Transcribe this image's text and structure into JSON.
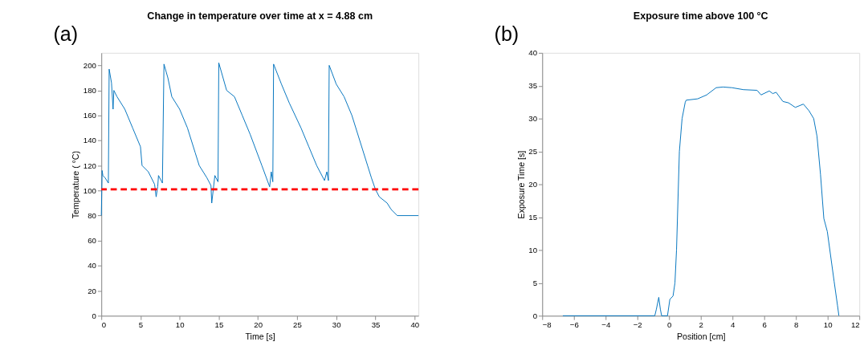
{
  "chart_data": [
    {
      "type": "line",
      "title": "Change in temperature over time at x = 4.88 cm",
      "xlabel": "Time [s]",
      "ylabel": "Temperature ( °C)",
      "annotations": [
        "(a)"
      ],
      "grid": false,
      "line_style": "solid",
      "marker": "none",
      "xlim": [
        0,
        40.5
      ],
      "xticks": [
        0,
        5,
        10,
        15,
        20,
        25,
        30,
        35,
        40
      ],
      "ylim": [
        0,
        210
      ],
      "yticks": [
        0,
        20,
        40,
        60,
        80,
        100,
        120,
        140,
        160,
        180,
        200
      ],
      "ref_lines": [
        {
          "axis": "y",
          "value": 101,
          "color": "#ff0000",
          "line_style": "dashed"
        }
      ],
      "series": [
        {
          "color": "#0072bd",
          "x": [
            0,
            0.1,
            0.2,
            0.5,
            0.9,
            1.0,
            1.3,
            1.5,
            1.6,
            2.0,
            3.0,
            4.0,
            5.0,
            5.2,
            6.0,
            6.8,
            7.0,
            7.2,
            7.3,
            7.8,
            8.0,
            8.5,
            9.0,
            10.0,
            11.0,
            12.0,
            12.5,
            13.5,
            14.0,
            14.1,
            14.5,
            14.9,
            15.0,
            16.0,
            17.0,
            18.0,
            19.0,
            20.5,
            21.5,
            21.7,
            21.9,
            22.0,
            23.0,
            24.0,
            25.5,
            26.5,
            27.5,
            28.5,
            28.8,
            29.0,
            29.1,
            30.0,
            31.0,
            32.0,
            33.0,
            34.0,
            34.5,
            35.0,
            35.5,
            36.5,
            37.0,
            37.8,
            40.5
          ],
          "values": [
            80,
            116,
            112,
            110,
            106,
            197,
            186,
            165,
            180,
            175,
            165,
            150,
            135,
            120,
            115,
            105,
            95,
            103,
            112,
            106,
            201,
            190,
            175,
            165,
            150,
            130,
            120,
            110,
            104,
            90,
            112,
            107,
            202,
            180,
            175,
            160,
            145,
            120,
            103,
            115,
            107,
            201,
            185,
            170,
            150,
            135,
            120,
            108,
            115,
            108,
            200,
            185,
            175,
            160,
            140,
            120,
            110,
            101,
            95,
            90,
            85,
            80,
            80
          ]
        }
      ]
    },
    {
      "type": "line",
      "title": "Exposure time above 100 °C",
      "xlabel": "Position [cm]",
      "ylabel": "Exposure Time [s]",
      "annotations": [
        "(b)"
      ],
      "grid": false,
      "line_style": "solid",
      "marker": "none",
      "xlim": [
        -8,
        12
      ],
      "xticks": [
        -8,
        -6,
        -4,
        -2,
        0,
        2,
        4,
        6,
        8,
        10,
        12
      ],
      "ylim": [
        0,
        40
      ],
      "yticks": [
        0,
        5,
        10,
        15,
        20,
        25,
        30,
        35,
        40
      ],
      "series": [
        {
          "color": "#0072bd",
          "x": [
            -6.7,
            -0.9,
            -0.8,
            -0.65,
            -0.55,
            -0.47,
            -0.1,
            0.05,
            0.25,
            0.37,
            0.47,
            0.65,
            0.82,
            1.02,
            1.08,
            1.8,
            2.37,
            2.97,
            3.4,
            3.96,
            4.69,
            5.55,
            5.8,
            6.32,
            6.54,
            6.75,
            7.18,
            7.53,
            7.96,
            8.47,
            8.82,
            9.12,
            9.33,
            9.55,
            9.76,
            9.98,
            10.41,
            10.62,
            10.71
          ],
          "values": [
            0,
            0,
            1,
            2.8,
            1,
            0,
            0,
            2.5,
            3,
            5,
            10,
            25,
            30,
            32.5,
            32.8,
            33.0,
            33.6,
            34.7,
            34.8,
            34.7,
            34.4,
            34.3,
            33.6,
            34.2,
            33.8,
            34.0,
            32.6,
            32.4,
            31.7,
            32.2,
            31.2,
            30.0,
            27.3,
            21.5,
            14.8,
            12.8,
            5.2,
            1.6,
            0
          ]
        }
      ]
    }
  ]
}
